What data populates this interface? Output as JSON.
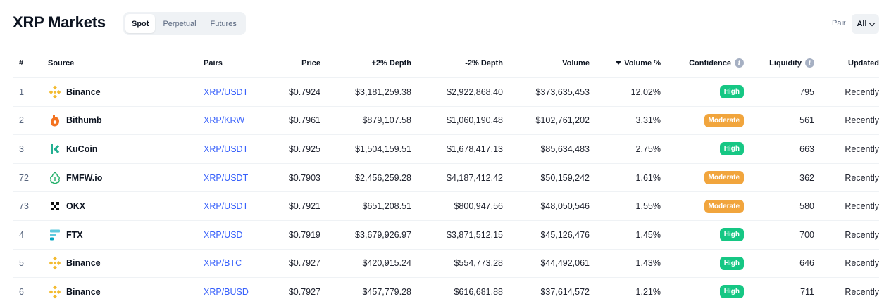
{
  "page": {
    "title": "XRP Markets"
  },
  "tabs": [
    {
      "label": "Spot",
      "active": true
    },
    {
      "label": "Perpetual",
      "active": false
    },
    {
      "label": "Futures",
      "active": false
    }
  ],
  "pair_filter": {
    "label": "Pair",
    "value": "All"
  },
  "table": {
    "headers": {
      "rank": "#",
      "source": "Source",
      "pairs": "Pairs",
      "price": "Price",
      "plus_depth": "+2% Depth",
      "minus_depth": "-2% Depth",
      "volume": "Volume",
      "volume_pct": "Volume %",
      "confidence": "Confidence",
      "liquidity": "Liquidity",
      "updated": "Updated"
    },
    "rows": [
      {
        "rank": "1",
        "source": "Binance",
        "logo": "binance-icon",
        "pair": "XRP/USDT",
        "price": "$0.7924",
        "plus_depth": "$3,181,259.38",
        "minus_depth": "$2,922,868.40",
        "volume": "$373,635,453",
        "volume_pct": "12.02%",
        "confidence": "High",
        "confidence_level": "high",
        "liquidity": "795",
        "updated": "Recently"
      },
      {
        "rank": "2",
        "source": "Bithumb",
        "logo": "bithumb-icon",
        "pair": "XRP/KRW",
        "price": "$0.7961",
        "plus_depth": "$879,107.58",
        "minus_depth": "$1,060,190.48",
        "volume": "$102,761,202",
        "volume_pct": "3.31%",
        "confidence": "Moderate",
        "confidence_level": "moderate",
        "liquidity": "561",
        "updated": "Recently"
      },
      {
        "rank": "3",
        "source": "KuCoin",
        "logo": "kucoin-icon",
        "pair": "XRP/USDT",
        "price": "$0.7925",
        "plus_depth": "$1,504,159.51",
        "minus_depth": "$1,678,417.13",
        "volume": "$85,634,483",
        "volume_pct": "2.75%",
        "confidence": "High",
        "confidence_level": "high",
        "liquidity": "663",
        "updated": "Recently"
      },
      {
        "rank": "72",
        "source": "FMFW.io",
        "logo": "fmfw-icon",
        "pair": "XRP/USDT",
        "price": "$0.7903",
        "plus_depth": "$2,456,259.28",
        "minus_depth": "$4,187,412.42",
        "volume": "$50,159,242",
        "volume_pct": "1.61%",
        "confidence": "Moderate",
        "confidence_level": "moderate",
        "liquidity": "362",
        "updated": "Recently"
      },
      {
        "rank": "73",
        "source": "OKX",
        "logo": "okx-icon",
        "pair": "XRP/USDT",
        "price": "$0.7921",
        "plus_depth": "$651,208.51",
        "minus_depth": "$800,947.56",
        "volume": "$48,050,546",
        "volume_pct": "1.55%",
        "confidence": "Moderate",
        "confidence_level": "moderate",
        "liquidity": "580",
        "updated": "Recently"
      },
      {
        "rank": "4",
        "source": "FTX",
        "logo": "ftx-icon",
        "pair": "XRP/USD",
        "price": "$0.7919",
        "plus_depth": "$3,679,926.97",
        "minus_depth": "$3,871,512.15",
        "volume": "$45,126,476",
        "volume_pct": "1.45%",
        "confidence": "High",
        "confidence_level": "high",
        "liquidity": "700",
        "updated": "Recently"
      },
      {
        "rank": "5",
        "source": "Binance",
        "logo": "binance-icon",
        "pair": "XRP/BTC",
        "price": "$0.7927",
        "plus_depth": "$420,915.24",
        "minus_depth": "$554,773.28",
        "volume": "$44,492,061",
        "volume_pct": "1.43%",
        "confidence": "High",
        "confidence_level": "high",
        "liquidity": "646",
        "updated": "Recently"
      },
      {
        "rank": "6",
        "source": "Binance",
        "logo": "binance-icon",
        "pair": "XRP/BUSD",
        "price": "$0.7927",
        "plus_depth": "$457,779.28",
        "minus_depth": "$616,681.88",
        "volume": "$37,614,572",
        "volume_pct": "1.21%",
        "confidence": "High",
        "confidence_level": "high",
        "liquidity": "711",
        "updated": "Recently"
      }
    ]
  },
  "colors": {
    "link": "#3861fb",
    "high": "#16c784",
    "moderate": "#f1a53d",
    "muted_text": "#58667e"
  }
}
